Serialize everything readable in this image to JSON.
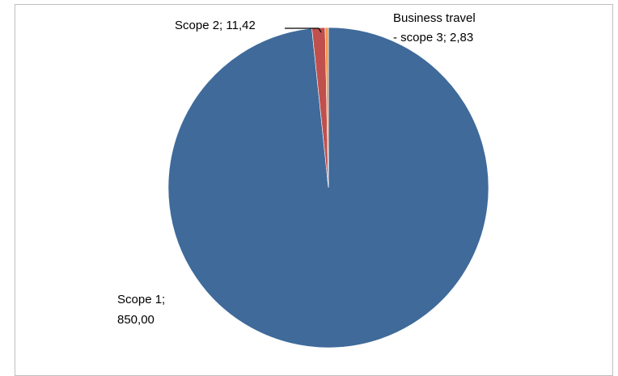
{
  "chart_data": {
    "type": "pie",
    "title": "",
    "categories": [
      "Scope 1",
      "Scope 2",
      "Business travel - scope 3"
    ],
    "values": [
      850.0,
      11.42,
      2.83
    ],
    "colors": [
      "#3f6a9a",
      "#c0504d",
      "#f79646"
    ],
    "labels": {
      "scope1": {
        "name": "Scope 1;",
        "value": "850,00"
      },
      "scope2": {
        "text": "Scope 2; 11,42"
      },
      "travel": {
        "line1": "Business travel",
        "line2": "- scope 3; 2,83"
      }
    },
    "legend": "none",
    "start_angle": "12 o'clock",
    "direction": "clockwise"
  }
}
